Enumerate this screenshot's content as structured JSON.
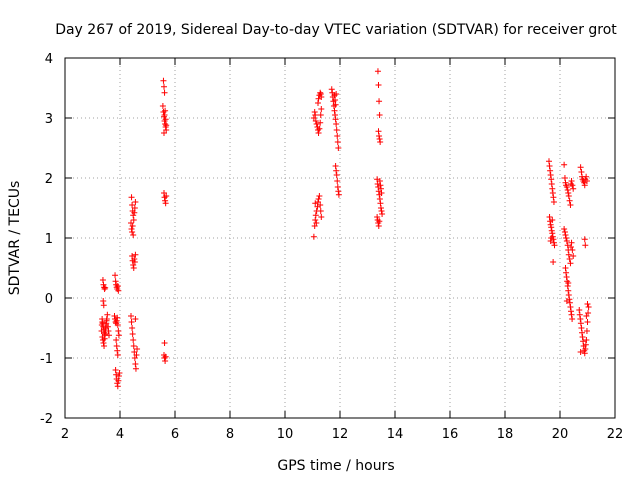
{
  "chart_data": {
    "type": "scatter",
    "title": "Day 267 of 2019, Sidereal Day-to-day VTEC variation (SDTVAR) for receiver grot",
    "xlabel": "GPS time / hours",
    "ylabel": "SDTVAR / TECUs",
    "xlim": [
      2,
      22
    ],
    "ylim": [
      -2,
      4
    ],
    "x_ticks": [
      2,
      4,
      6,
      8,
      10,
      12,
      14,
      16,
      18,
      20,
      22
    ],
    "y_ticks": [
      -2,
      -1,
      0,
      1,
      2,
      3,
      4
    ],
    "x_tick_labels": [
      "2",
      "4",
      "6",
      "8",
      "10",
      "12",
      "14",
      "16",
      "18",
      "20",
      "22"
    ],
    "y_tick_labels": [
      "-2",
      "-1",
      "0",
      "1",
      "2",
      "3",
      "4"
    ],
    "grid": true,
    "marker": "+",
    "series": [
      {
        "name": "SDTVAR",
        "color": "#ff0000",
        "points": [
          [
            3.38,
            0.3
          ],
          [
            3.4,
            0.22
          ],
          [
            3.42,
            0.18
          ],
          [
            3.44,
            0.15
          ],
          [
            3.46,
            0.17
          ],
          [
            3.39,
            -0.05
          ],
          [
            3.41,
            -0.12
          ],
          [
            3.35,
            -0.35
          ],
          [
            3.37,
            -0.42
          ],
          [
            3.39,
            -0.48
          ],
          [
            3.41,
            -0.52
          ],
          [
            3.43,
            -0.58
          ],
          [
            3.45,
            -0.62
          ],
          [
            3.47,
            -0.55
          ],
          [
            3.49,
            -0.45
          ],
          [
            3.51,
            -0.38
          ],
          [
            3.36,
            -0.65
          ],
          [
            3.38,
            -0.7
          ],
          [
            3.4,
            -0.75
          ],
          [
            3.42,
            -0.8
          ],
          [
            3.44,
            -0.68
          ],
          [
            3.46,
            -0.6
          ],
          [
            3.48,
            -0.5
          ],
          [
            3.5,
            -0.42
          ],
          [
            3.52,
            -0.35
          ],
          [
            3.54,
            -0.28
          ],
          [
            3.56,
            -0.48
          ],
          [
            3.58,
            -0.55
          ],
          [
            3.6,
            -0.62
          ],
          [
            3.33,
            -0.55
          ],
          [
            3.34,
            -0.45
          ],
          [
            3.36,
            -0.4
          ],
          [
            3.82,
            0.38
          ],
          [
            3.84,
            0.28
          ],
          [
            3.86,
            0.22
          ],
          [
            3.88,
            0.18
          ],
          [
            3.9,
            0.15
          ],
          [
            3.92,
            0.2
          ],
          [
            3.94,
            0.12
          ],
          [
            3.8,
            -0.3
          ],
          [
            3.82,
            -0.35
          ],
          [
            3.84,
            -0.4
          ],
          [
            3.86,
            -0.42
          ],
          [
            3.88,
            -0.38
          ],
          [
            3.9,
            -0.33
          ],
          [
            3.92,
            -0.45
          ],
          [
            3.94,
            -0.55
          ],
          [
            3.96,
            -0.62
          ],
          [
            3.86,
            -0.7
          ],
          [
            3.88,
            -0.8
          ],
          [
            3.9,
            -0.88
          ],
          [
            3.92,
            -0.95
          ],
          [
            3.84,
            -1.2
          ],
          [
            3.86,
            -1.28
          ],
          [
            3.88,
            -1.35
          ],
          [
            3.9,
            -1.42
          ],
          [
            3.92,
            -1.47
          ],
          [
            3.94,
            -1.38
          ],
          [
            3.96,
            -1.3
          ],
          [
            3.98,
            -1.25
          ],
          [
            4.42,
            1.68
          ],
          [
            4.44,
            1.55
          ],
          [
            4.46,
            1.45
          ],
          [
            4.48,
            1.38
          ],
          [
            4.5,
            1.3
          ],
          [
            4.52,
            1.42
          ],
          [
            4.54,
            1.5
          ],
          [
            4.56,
            1.6
          ],
          [
            4.4,
            1.25
          ],
          [
            4.42,
            1.15
          ],
          [
            4.44,
            1.1
          ],
          [
            4.46,
            1.2
          ],
          [
            4.48,
            1.05
          ],
          [
            4.44,
            0.7
          ],
          [
            4.46,
            0.62
          ],
          [
            4.48,
            0.55
          ],
          [
            4.5,
            0.5
          ],
          [
            4.52,
            0.65
          ],
          [
            4.54,
            0.6
          ],
          [
            4.56,
            0.72
          ],
          [
            4.4,
            -0.3
          ],
          [
            4.42,
            -0.4
          ],
          [
            4.44,
            -0.5
          ],
          [
            4.46,
            -0.6
          ],
          [
            4.48,
            -0.7
          ],
          [
            4.5,
            -0.8
          ],
          [
            4.52,
            -0.9
          ],
          [
            4.54,
            -1.0
          ],
          [
            4.56,
            -1.1
          ],
          [
            4.58,
            -1.18
          ],
          [
            4.6,
            -0.95
          ],
          [
            4.62,
            -0.85
          ],
          [
            4.56,
            -0.35
          ],
          [
            5.58,
            3.62
          ],
          [
            5.6,
            3.52
          ],
          [
            5.62,
            3.42
          ],
          [
            5.56,
            3.2
          ],
          [
            5.58,
            3.1
          ],
          [
            5.6,
            3.02
          ],
          [
            5.62,
            2.95
          ],
          [
            5.64,
            2.9
          ],
          [
            5.66,
            2.85
          ],
          [
            5.68,
            2.8
          ],
          [
            5.6,
            2.75
          ],
          [
            5.62,
            3.05
          ],
          [
            5.64,
            3.12
          ],
          [
            5.66,
            2.98
          ],
          [
            5.68,
            2.88
          ],
          [
            5.6,
            1.75
          ],
          [
            5.62,
            1.68
          ],
          [
            5.64,
            1.62
          ],
          [
            5.66,
            1.58
          ],
          [
            5.68,
            1.7
          ],
          [
            5.62,
            -0.75
          ],
          [
            5.6,
            -0.95
          ],
          [
            5.62,
            -1.0
          ],
          [
            5.64,
            -1.05
          ],
          [
            5.66,
            -0.98
          ],
          [
            11.05,
            1.02
          ],
          [
            11.08,
            1.2
          ],
          [
            11.1,
            1.3
          ],
          [
            11.12,
            1.38
          ],
          [
            11.15,
            1.45
          ],
          [
            11.18,
            1.52
          ],
          [
            11.2,
            1.6
          ],
          [
            11.22,
            1.65
          ],
          [
            11.25,
            1.7
          ],
          [
            11.28,
            1.55
          ],
          [
            11.3,
            1.45
          ],
          [
            11.32,
            1.35
          ],
          [
            11.1,
            1.58
          ],
          [
            11.14,
            1.25
          ],
          [
            11.05,
            3.0
          ],
          [
            11.08,
            3.1
          ],
          [
            11.1,
            3.05
          ],
          [
            11.12,
            2.95
          ],
          [
            11.15,
            2.9
          ],
          [
            11.18,
            2.85
          ],
          [
            11.2,
            2.8
          ],
          [
            11.22,
            2.75
          ],
          [
            11.25,
            2.82
          ],
          [
            11.28,
            2.92
          ],
          [
            11.3,
            3.05
          ],
          [
            11.32,
            3.15
          ],
          [
            11.2,
            3.25
          ],
          [
            11.22,
            3.32
          ],
          [
            11.25,
            3.38
          ],
          [
            11.28,
            3.42
          ],
          [
            11.3,
            3.4
          ],
          [
            11.32,
            3.35
          ],
          [
            11.7,
            3.48
          ],
          [
            11.72,
            3.42
          ],
          [
            11.74,
            3.35
          ],
          [
            11.76,
            3.28
          ],
          [
            11.78,
            3.2
          ],
          [
            11.8,
            3.12
          ],
          [
            11.82,
            3.05
          ],
          [
            11.84,
            2.98
          ],
          [
            11.86,
            2.9
          ],
          [
            11.88,
            2.8
          ],
          [
            11.9,
            2.7
          ],
          [
            11.92,
            2.6
          ],
          [
            11.94,
            2.5
          ],
          [
            11.84,
            2.2
          ],
          [
            11.86,
            2.12
          ],
          [
            11.88,
            2.05
          ],
          [
            11.9,
            1.95
          ],
          [
            11.92,
            1.85
          ],
          [
            11.94,
            1.78
          ],
          [
            11.96,
            1.72
          ],
          [
            11.8,
            3.38
          ],
          [
            11.82,
            3.3
          ],
          [
            11.84,
            3.22
          ],
          [
            11.86,
            3.4
          ],
          [
            13.38,
            3.78
          ],
          [
            13.4,
            3.55
          ],
          [
            13.42,
            3.28
          ],
          [
            13.44,
            3.05
          ],
          [
            13.4,
            2.78
          ],
          [
            13.42,
            2.7
          ],
          [
            13.44,
            2.65
          ],
          [
            13.46,
            2.6
          ],
          [
            13.35,
            1.98
          ],
          [
            13.37,
            1.9
          ],
          [
            13.39,
            1.85
          ],
          [
            13.41,
            1.78
          ],
          [
            13.43,
            1.72
          ],
          [
            13.45,
            1.65
          ],
          [
            13.47,
            1.58
          ],
          [
            13.49,
            1.5
          ],
          [
            13.51,
            1.45
          ],
          [
            13.53,
            1.4
          ],
          [
            13.35,
            1.35
          ],
          [
            13.37,
            1.3
          ],
          [
            13.39,
            1.25
          ],
          [
            13.41,
            1.2
          ],
          [
            13.43,
            1.28
          ],
          [
            13.45,
            1.95
          ],
          [
            13.47,
            1.88
          ],
          [
            13.49,
            1.82
          ],
          [
            13.51,
            1.75
          ],
          [
            19.6,
            2.28
          ],
          [
            19.62,
            2.2
          ],
          [
            19.64,
            2.12
          ],
          [
            19.66,
            2.05
          ],
          [
            19.68,
            1.98
          ],
          [
            19.7,
            1.9
          ],
          [
            19.72,
            1.82
          ],
          [
            19.74,
            1.75
          ],
          [
            19.76,
            1.68
          ],
          [
            19.78,
            1.6
          ],
          [
            19.62,
            1.35
          ],
          [
            19.64,
            1.28
          ],
          [
            19.66,
            1.22
          ],
          [
            19.68,
            1.18
          ],
          [
            19.7,
            1.12
          ],
          [
            19.72,
            1.08
          ],
          [
            19.74,
            1.02
          ],
          [
            19.76,
            0.98
          ],
          [
            19.78,
            0.92
          ],
          [
            19.8,
            0.88
          ],
          [
            19.75,
            0.6
          ],
          [
            19.72,
            1.3
          ],
          [
            19.68,
            1.0
          ],
          [
            19.66,
            0.95
          ],
          [
            20.15,
            2.22
          ],
          [
            20.18,
            2.0
          ],
          [
            20.2,
            1.92
          ],
          [
            20.22,
            1.88
          ],
          [
            20.25,
            1.85
          ],
          [
            20.28,
            1.8
          ],
          [
            20.3,
            1.75
          ],
          [
            20.32,
            1.7
          ],
          [
            20.35,
            1.62
          ],
          [
            20.38,
            1.55
          ],
          [
            20.4,
            1.9
          ],
          [
            20.42,
            1.95
          ],
          [
            20.45,
            1.88
          ],
          [
            20.48,
            1.82
          ],
          [
            20.15,
            1.15
          ],
          [
            20.18,
            1.1
          ],
          [
            20.2,
            1.05
          ],
          [
            20.22,
            1.0
          ],
          [
            20.25,
            0.95
          ],
          [
            20.28,
            0.88
          ],
          [
            20.3,
            0.8
          ],
          [
            20.32,
            0.72
          ],
          [
            20.35,
            0.65
          ],
          [
            20.38,
            0.58
          ],
          [
            20.4,
            0.85
          ],
          [
            20.42,
            0.92
          ],
          [
            20.45,
            0.8
          ],
          [
            20.48,
            0.7
          ],
          [
            20.2,
            0.5
          ],
          [
            20.22,
            0.42
          ],
          [
            20.24,
            0.35
          ],
          [
            20.26,
            0.28
          ],
          [
            20.28,
            0.2
          ],
          [
            20.3,
            0.12
          ],
          [
            20.32,
            0.05
          ],
          [
            20.34,
            -0.02
          ],
          [
            20.36,
            -0.08
          ],
          [
            20.38,
            -0.15
          ],
          [
            20.4,
            -0.22
          ],
          [
            20.42,
            -0.28
          ],
          [
            20.44,
            -0.35
          ],
          [
            20.25,
            -0.05
          ],
          [
            20.3,
            0.25
          ],
          [
            20.75,
            2.18
          ],
          [
            20.78,
            2.1
          ],
          [
            20.8,
            2.02
          ],
          [
            20.82,
            1.98
          ],
          [
            20.85,
            1.95
          ],
          [
            20.88,
            1.92
          ],
          [
            20.9,
            1.88
          ],
          [
            20.92,
            1.98
          ],
          [
            20.95,
            2.02
          ],
          [
            20.98,
            1.95
          ],
          [
            20.9,
            0.98
          ],
          [
            20.92,
            0.88
          ],
          [
            20.7,
            -0.2
          ],
          [
            20.72,
            -0.28
          ],
          [
            20.74,
            -0.35
          ],
          [
            20.76,
            -0.42
          ],
          [
            20.78,
            -0.5
          ],
          [
            20.8,
            -0.58
          ],
          [
            20.82,
            -0.65
          ],
          [
            20.84,
            -0.72
          ],
          [
            20.86,
            -0.8
          ],
          [
            20.88,
            -0.88
          ],
          [
            20.9,
            -0.92
          ],
          [
            20.92,
            -0.85
          ],
          [
            20.94,
            -0.78
          ],
          [
            20.96,
            -0.7
          ],
          [
            20.98,
            -0.55
          ],
          [
            21.0,
            -0.4
          ],
          [
            21.02,
            -0.25
          ],
          [
            21.04,
            -0.15
          ],
          [
            21.0,
            -0.1
          ],
          [
            20.96,
            -0.3
          ],
          [
            20.75,
            -0.9
          ]
        ]
      }
    ]
  }
}
